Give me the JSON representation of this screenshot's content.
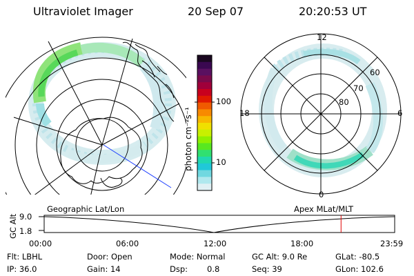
{
  "header": {
    "instrument": "Ultraviolet Imager",
    "date": "20 Sep 07",
    "time": "20:20:53 UT"
  },
  "colorbar": {
    "unit_label": "photon cm⁻²s⁻¹",
    "tick_labels": [
      "100",
      "10"
    ],
    "colors": [
      "#1a0820",
      "#3a0850",
      "#5a1060",
      "#7a0a4a",
      "#a0003a",
      "#c8001e",
      "#e01a00",
      "#f05a00",
      "#f88a00",
      "#f8b800",
      "#f0e000",
      "#c8f000",
      "#90f000",
      "#58e820",
      "#30e070",
      "#20d8b0",
      "#20c8d8",
      "#70d8e0",
      "#b0e8ee",
      "#e0f0f4"
    ]
  },
  "left_map": {
    "coords_label": "Geographic Lat/Lon"
  },
  "right_map": {
    "coords_label": "Apex MLat/MLT",
    "mlt_labels": {
      "top": "12",
      "bottom": "0",
      "left": "18",
      "right": "6"
    },
    "lat_labels": [
      "60",
      "70",
      "80"
    ]
  },
  "altitude_plot": {
    "ylabel": "GC Alt",
    "y_ticks": [
      "9.0",
      "1.8"
    ],
    "x_ticks": [
      "00:00",
      "06:00",
      "12:00",
      "18:00",
      "23:59"
    ],
    "current_time_fraction": 0.847,
    "marker_color": "#e00000"
  },
  "info": {
    "filter": "Flt: LBHL",
    "door": "Door: Open",
    "mode": "Mode: Normal",
    "gc_alt": "GC Alt: 9.0 Re",
    "glat": "GLat: -80.5",
    "ip": "IP: 36.0",
    "gain": "Gain: 14",
    "dsp_label": "Dsp:",
    "dsp_value": "0.8",
    "seq": "Seq: 39",
    "glon": "GLon: 102.6"
  }
}
